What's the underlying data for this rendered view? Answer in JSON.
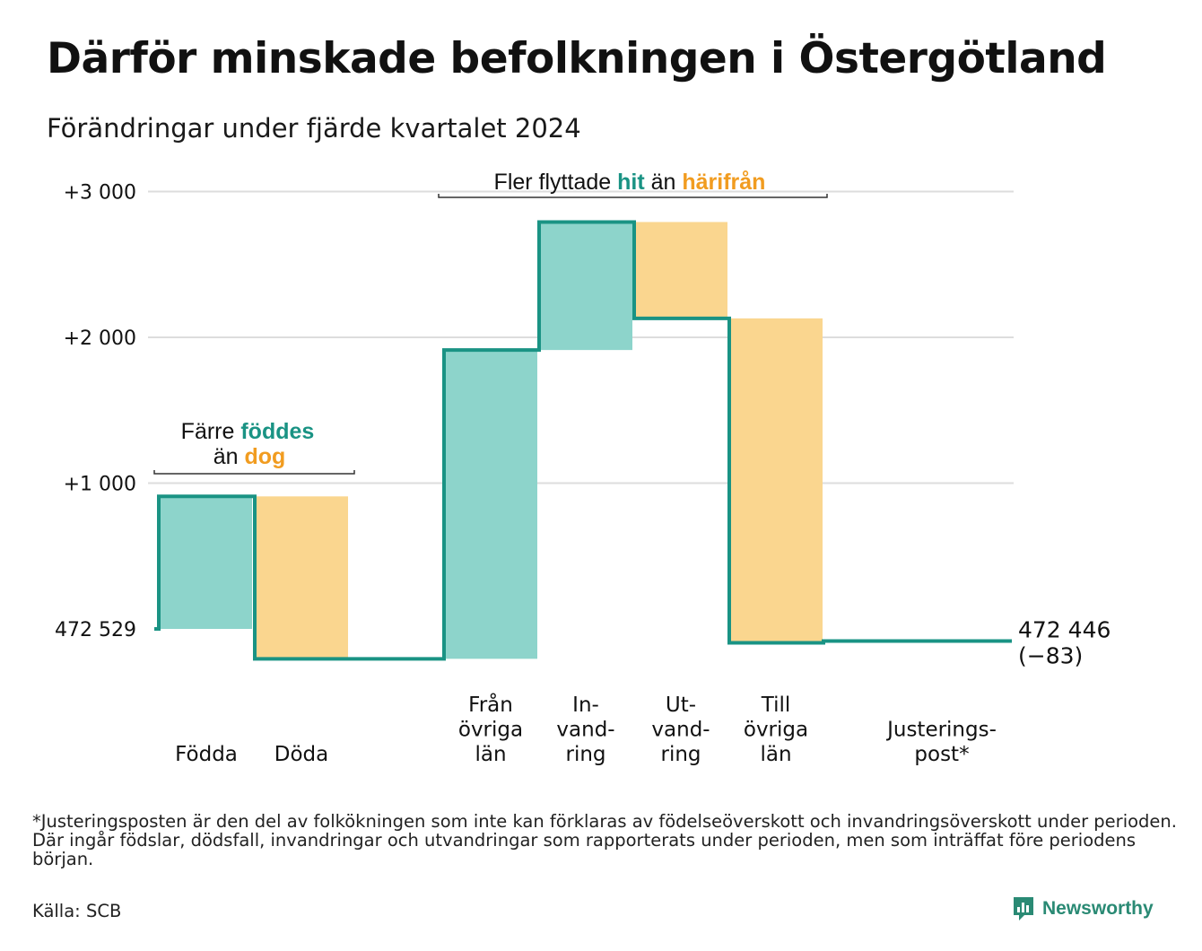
{
  "title": "Därför minskade befolkningen i Östergötland",
  "subtitle": "Förändringar under fjärde kvartalet 2024",
  "colors": {
    "inflow": "#8dd4cb",
    "outflow": "#fad68f",
    "line": "#1a9384",
    "inflow_text": "#1a9384",
    "outflow_text": "#f19c20",
    "grid": "#dddddd"
  },
  "chart_data": {
    "type": "waterfall",
    "baseline_label": "472 529",
    "start_population": 472529,
    "end_label": "472 446",
    "end_change_label": "(−83)",
    "y_ticks": [
      {
        "value": 3000,
        "label": "+3 000"
      },
      {
        "value": 2000,
        "label": "+2 000"
      },
      {
        "value": 1000,
        "label": "+1 000"
      },
      {
        "value": 0,
        "label": "472 529"
      }
    ],
    "ylim": [
      -250,
      3150
    ],
    "steps": [
      {
        "label": [
          "Födda"
        ],
        "change": 909,
        "kind": "inflow"
      },
      {
        "label": [
          "Döda"
        ],
        "change": -1114,
        "kind": "outflow"
      },
      {
        "label": [
          "Från",
          "övriga",
          "län"
        ],
        "change": 2118,
        "kind": "inflow"
      },
      {
        "label": [
          "In-",
          "vand-",
          "ring"
        ],
        "change": 878,
        "kind": "inflow"
      },
      {
        "label": [
          "Ut-",
          "vand-",
          "ring"
        ],
        "change": -661,
        "kind": "outflow"
      },
      {
        "label": [
          "Till",
          "övriga",
          "län"
        ],
        "change": -2225,
        "kind": "outflow"
      },
      {
        "label": [
          "Justerings-",
          "post*"
        ],
        "change": 12,
        "kind": "adjustment"
      }
    ],
    "annotations": [
      {
        "parts": [
          {
            "text": "Färre ",
            "role": "plain"
          },
          {
            "text": "föddes",
            "role": "inflow"
          }
        ],
        "parts2": [
          {
            "text": "än ",
            "role": "plain"
          },
          {
            "text": "dog",
            "role": "outflow"
          }
        ]
      },
      {
        "parts": [
          {
            "text": "Fler flyttade ",
            "role": "plain"
          },
          {
            "text": "hit",
            "role": "inflow"
          },
          {
            "text": " än ",
            "role": "plain"
          },
          {
            "text": "härifrån",
            "role": "outflow"
          }
        ]
      }
    ]
  },
  "footnote": "*Justeringsposten är den del av folkökningen som inte kan förklaras av födelseöverskott och invandringsöverskott under perioden. Där ingår födslar, dödsfall, invandringar och utvandringar som rapporterats under perioden, men som inträffat före periodens början.",
  "source": "Källa: SCB",
  "brand": {
    "name": "Newsworthy",
    "icon": "newsworthy-logo-icon"
  }
}
